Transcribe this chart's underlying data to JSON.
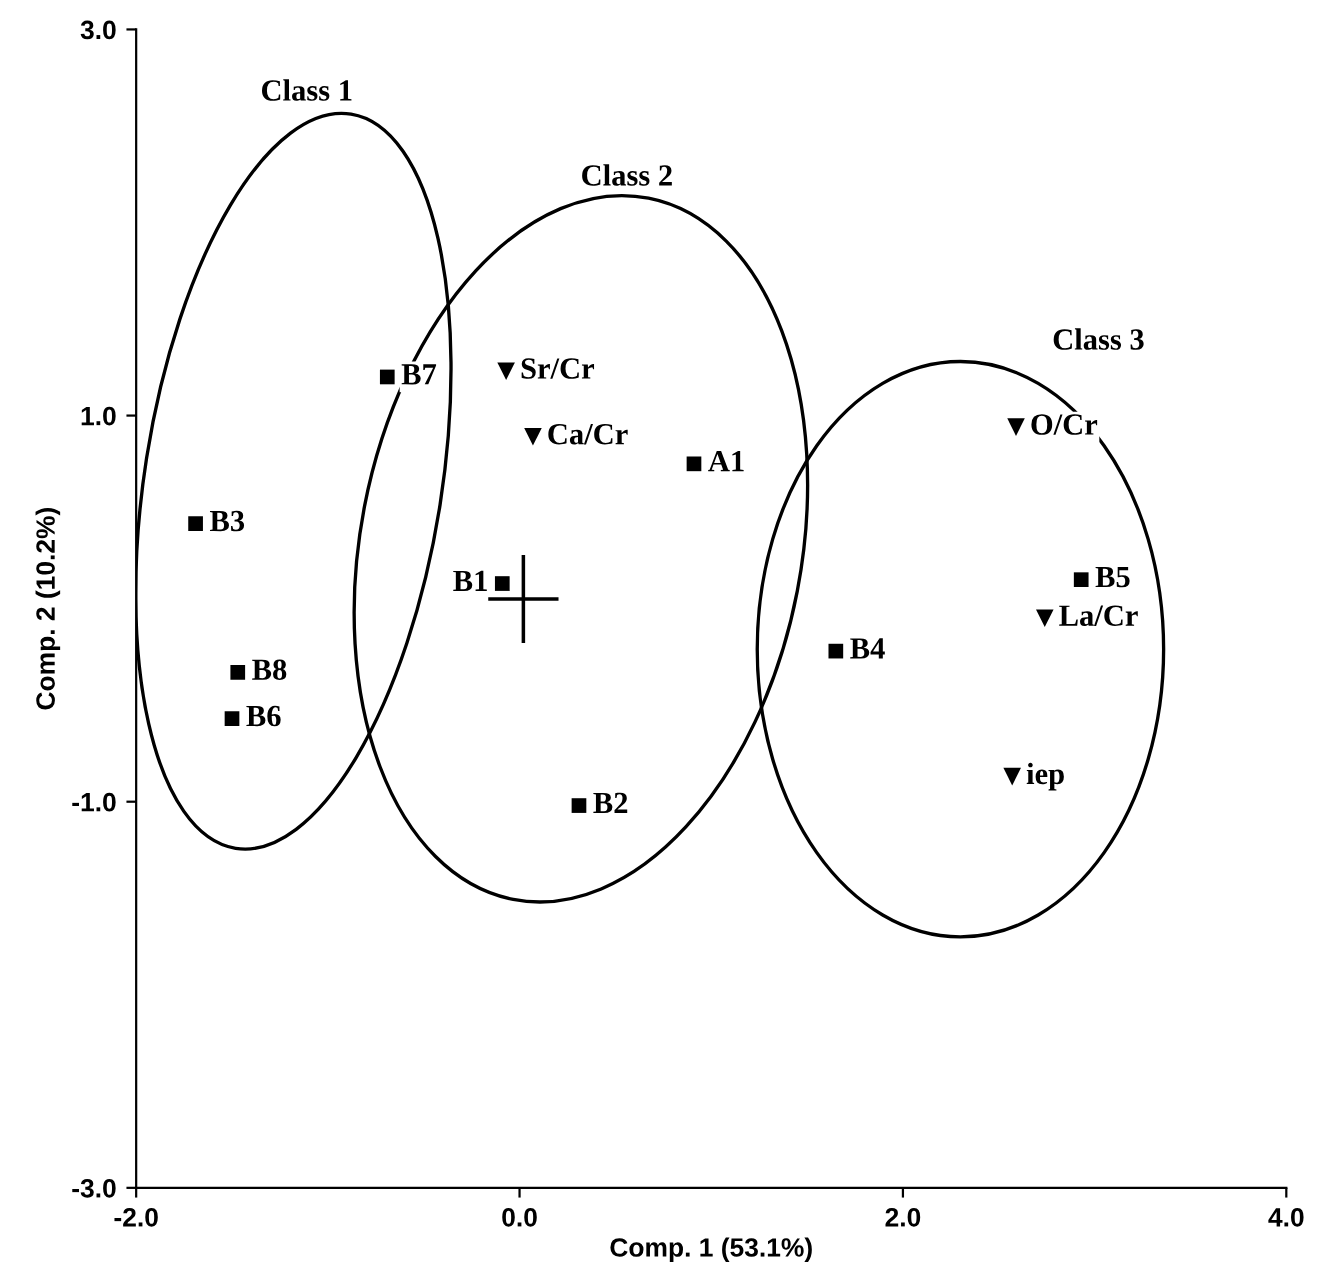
{
  "chart_data": {
    "type": "scatter",
    "xlabel": "Comp. 1 (53.1%)",
    "ylabel": "Comp. 2 (10.2%)",
    "xlim": [
      -2,
      4
    ],
    "ylim": [
      -3,
      3
    ],
    "xticks": [
      {
        "value": -2,
        "label": "-2.0"
      },
      {
        "value": 0,
        "label": "0.0"
      },
      {
        "value": 2,
        "label": "2.0"
      },
      {
        "value": 4,
        "label": "4.0"
      }
    ],
    "yticks": [
      {
        "value": -3,
        "label": "-3.0"
      },
      {
        "value": -1,
        "label": "-1.0"
      },
      {
        "value": 1,
        "label": "1.0"
      },
      {
        "value": 3,
        "label": "3.0"
      }
    ],
    "grid": false,
    "legend": false,
    "series": [
      {
        "color": "#000000",
        "marker": "square",
        "x": [
          -0.69,
          -1.69,
          -1.47,
          -1.5,
          -0.09,
          0.31,
          0.91,
          1.65,
          2.93
        ],
        "values": [
          1.2,
          0.44,
          -0.33,
          -0.57,
          0.13,
          -1.02,
          0.75,
          -0.22,
          0.15
        ],
        "value_labels": [
          "B7",
          "B3",
          "B8",
          "B6",
          "B1",
          "B2",
          "A1",
          "B4",
          "B5"
        ]
      },
      {
        "color": "#000000",
        "marker": "triangle",
        "x": [
          -0.07,
          0.07,
          2.59,
          2.74,
          2.57
        ],
        "values": [
          1.23,
          0.89,
          0.94,
          -0.05,
          -0.87
        ],
        "value_labels": [
          "Sr/Cr",
          "Ca/Cr",
          "O/Cr",
          "La/Cr",
          "iep"
        ]
      },
      {
        "color": "#000000",
        "marker": "cross",
        "x": [
          0.02
        ],
        "values": [
          0.05
        ]
      }
    ],
    "annotations": [
      "Class 1",
      "Class 2",
      "Class 3"
    ]
  }
}
